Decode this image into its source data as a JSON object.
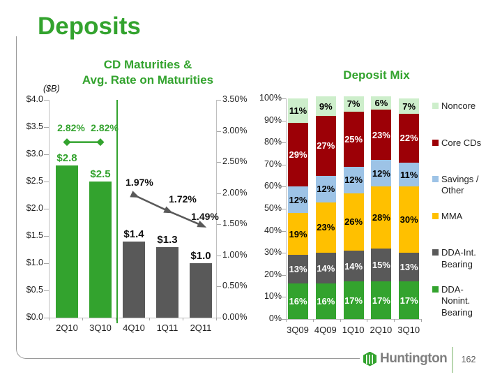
{
  "slide": {
    "title": "Deposits",
    "brand": "Huntington",
    "page_number": "162"
  },
  "colors": {
    "green": "#33a32e",
    "light_green": "#cdeecb",
    "dark_red": "#9c0006",
    "light_blue": "#9dc3e6",
    "yellow": "#ffc000",
    "dark_gray": "#595959",
    "axis_gray": "#bfbfbf"
  },
  "chart_data": [
    {
      "type": "bar",
      "title": "CD Maturities &\nAvg. Rate on Maturities",
      "units_label": "($B)",
      "categories": [
        "2Q10",
        "3Q10",
        "4Q10",
        "1Q11",
        "2Q11"
      ],
      "series": [
        {
          "name": "CD Maturities ($B)",
          "type": "bar",
          "values": [
            2.8,
            2.5,
            1.4,
            1.3,
            1.0
          ],
          "labels": [
            "$2.8",
            "$2.5",
            "$1.4",
            "$1.3",
            "$1.0"
          ],
          "color_keys": [
            "green",
            "dark_gray",
            "dark_gray",
            "dark_gray",
            "dark_gray"
          ],
          "bar_color_keys": [
            "green",
            "green",
            "dark_gray",
            "dark_gray",
            "dark_gray"
          ]
        },
        {
          "name": "Avg. Rate on Maturities (%)",
          "type": "line",
          "values": [
            2.82,
            2.82,
            1.97,
            1.72,
            1.49
          ],
          "labels": [
            "2.82%",
            "2.82%",
            "1.97%",
            "1.72%",
            "1.49%"
          ]
        }
      ],
      "left_axis": {
        "ticks": [
          "$4.0",
          "$3.5",
          "$3.0",
          "$2.5",
          "$2.0",
          "$1.5",
          "$1.0",
          "$0.5",
          "$0.0"
        ],
        "min": 0,
        "max": 4
      },
      "right_axis": {
        "ticks": [
          "3.50%",
          "3.00%",
          "2.50%",
          "2.00%",
          "1.50%",
          "1.00%",
          "0.50%",
          "0.00%"
        ],
        "min": 0,
        "max": 3.5
      },
      "grid": false,
      "legend": "none"
    },
    {
      "type": "bar",
      "subtype": "stacked-100",
      "title": "Deposit Mix",
      "categories": [
        "3Q09",
        "4Q09",
        "1Q10",
        "2Q10",
        "3Q10"
      ],
      "series": [
        {
          "name": "DDA-Nonint. Bearing",
          "legend_label": "DDA-\nNonint.\nBearing",
          "color_key": "green",
          "label_color": "#ffffff",
          "values": [
            16,
            16,
            17,
            17,
            17
          ]
        },
        {
          "name": "DDA-Int. Bearing",
          "legend_label": "DDA-Int.\nBearing",
          "color_key": "dark_gray",
          "label_color": "#ffffff",
          "values": [
            13,
            14,
            14,
            15,
            13
          ]
        },
        {
          "name": "MMA",
          "legend_label": "MMA",
          "color_key": "yellow",
          "label_color": "#000000",
          "values": [
            19,
            23,
            26,
            28,
            30
          ]
        },
        {
          "name": "Savings / Other",
          "legend_label": "Savings /\nOther",
          "color_key": "light_blue",
          "label_color": "#000000",
          "values": [
            12,
            12,
            12,
            12,
            11
          ]
        },
        {
          "name": "Core CDs",
          "legend_label": "Core CDs",
          "color_key": "dark_red",
          "label_color": "#ffffff",
          "values": [
            29,
            27,
            25,
            23,
            22
          ]
        },
        {
          "name": "Noncore",
          "legend_label": "Noncore",
          "color_key": "light_green",
          "label_color": "#000000",
          "values": [
            11,
            9,
            7,
            6,
            7
          ]
        }
      ],
      "y_axis": {
        "ticks": [
          "100%",
          "90%",
          "80%",
          "70%",
          "60%",
          "50%",
          "40%",
          "30%",
          "20%",
          "10%",
          "0%"
        ],
        "min": 0,
        "max": 100
      },
      "grid": false,
      "legend_position": "right"
    }
  ]
}
